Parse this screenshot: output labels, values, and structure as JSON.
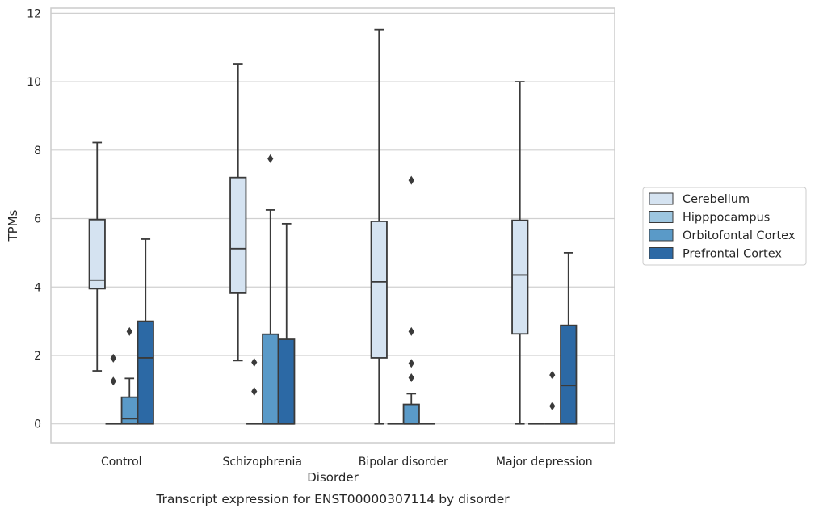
{
  "caption": "Transcript expression for ENST00000307114 by disorder",
  "chart_data": {
    "type": "box",
    "title": "",
    "xlabel": "Disorder",
    "ylabel": "TPMs",
    "ylim": [
      -0.55,
      12.15
    ],
    "yticks": [
      0,
      2,
      4,
      6,
      8,
      10,
      12
    ],
    "grid": "horizontal",
    "legend_position": "right",
    "categories": [
      "Control",
      "Schizophrenia",
      "Bipolar disorder",
      "Major depression"
    ],
    "series": [
      {
        "name": "Cerebellum",
        "color": "#d5e3f1",
        "boxes": [
          {
            "whisker_low": 1.55,
            "q1": 3.95,
            "median": 4.2,
            "q3": 5.97,
            "whisker_high": 8.22,
            "outliers": []
          },
          {
            "whisker_low": 1.85,
            "q1": 3.82,
            "median": 5.12,
            "q3": 7.2,
            "whisker_high": 10.52,
            "outliers": []
          },
          {
            "whisker_low": 0.0,
            "q1": 1.93,
            "median": 4.15,
            "q3": 5.92,
            "whisker_high": 11.52,
            "outliers": []
          },
          {
            "whisker_low": 0.0,
            "q1": 2.63,
            "median": 4.35,
            "q3": 5.95,
            "whisker_high": 10.0,
            "outliers": []
          }
        ]
      },
      {
        "name": "Hipppocampus",
        "color": "#9dc6e0",
        "boxes": [
          {
            "whisker_low": 0.0,
            "q1": 0.0,
            "median": 0.0,
            "q3": 0.0,
            "whisker_high": 0.0,
            "outliers": [
              1.25,
              1.92
            ]
          },
          {
            "whisker_low": 0.0,
            "q1": 0.0,
            "median": 0.0,
            "q3": 0.0,
            "whisker_high": 0.0,
            "outliers": [
              0.95,
              1.8
            ]
          },
          {
            "whisker_low": 0.0,
            "q1": 0.0,
            "median": 0.0,
            "q3": 0.0,
            "whisker_high": 0.0,
            "outliers": []
          },
          {
            "whisker_low": 0.0,
            "q1": 0.0,
            "median": 0.0,
            "q3": 0.0,
            "whisker_high": 0.0,
            "outliers": []
          }
        ]
      },
      {
        "name": "Orbitofontal Cortex",
        "color": "#5a9ac8",
        "boxes": [
          {
            "whisker_low": 0.0,
            "q1": 0.0,
            "median": 0.15,
            "q3": 0.78,
            "whisker_high": 1.33,
            "outliers": [
              2.7
            ]
          },
          {
            "whisker_low": 0.0,
            "q1": 0.0,
            "median": 0.0,
            "q3": 2.62,
            "whisker_high": 6.25,
            "outliers": [
              7.75
            ]
          },
          {
            "whisker_low": 0.0,
            "q1": 0.0,
            "median": 0.0,
            "q3": 0.57,
            "whisker_high": 0.88,
            "outliers": [
              1.35,
              1.77,
              2.7,
              7.12
            ]
          },
          {
            "whisker_low": 0.0,
            "q1": 0.0,
            "median": 0.0,
            "q3": 0.0,
            "whisker_high": 0.0,
            "outliers": [
              0.52,
              1.43
            ]
          }
        ]
      },
      {
        "name": "Prefrontal Cortex",
        "color": "#2c69a5",
        "boxes": [
          {
            "whisker_low": 0.0,
            "q1": 0.0,
            "median": 1.93,
            "q3": 3.0,
            "whisker_high": 5.4,
            "outliers": []
          },
          {
            "whisker_low": 0.0,
            "q1": 0.0,
            "median": 0.0,
            "q3": 2.47,
            "whisker_high": 5.85,
            "outliers": []
          },
          {
            "whisker_low": 0.0,
            "q1": 0.0,
            "median": 0.0,
            "q3": 0.0,
            "whisker_high": 0.0,
            "outliers": []
          },
          {
            "whisker_low": 0.0,
            "q1": 0.0,
            "median": 1.12,
            "q3": 2.88,
            "whisker_high": 5.0,
            "outliers": []
          }
        ]
      }
    ]
  }
}
